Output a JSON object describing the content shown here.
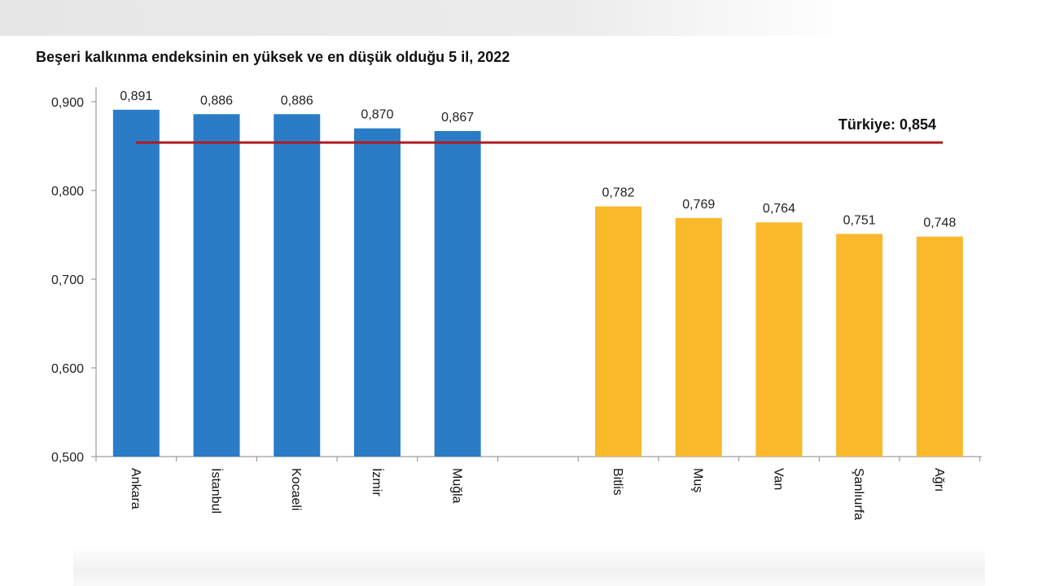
{
  "chart_data": {
    "type": "bar",
    "title": "Beşeri kalkınma endeksinin en yüksek ve en düşük olduğu 5 il, 2022",
    "xlabel": "",
    "ylabel": "",
    "ylim": [
      0.5,
      0.9
    ],
    "yticks": [
      "0,500",
      "0,600",
      "0,700",
      "0,800",
      "0,900"
    ],
    "ytick_values": [
      0.5,
      0.6,
      0.7,
      0.8,
      0.9
    ],
    "grid": false,
    "categories": [
      "Ankara",
      "İstanbul",
      "Kocaeli",
      "İzmir",
      "Muğla",
      "Bitlis",
      "Muş",
      "Van",
      "Şanlıurfa",
      "Ağrı"
    ],
    "values": [
      0.891,
      0.886,
      0.886,
      0.87,
      0.867,
      0.782,
      0.769,
      0.764,
      0.751,
      0.748
    ],
    "value_labels": [
      "0,891",
      "0,886",
      "0,886",
      "0,870",
      "0,867",
      "0,782",
      "0,769",
      "0,764",
      "0,751",
      "0,748"
    ],
    "groups": [
      {
        "indices": [
          0,
          1,
          2,
          3,
          4
        ],
        "color": "#2A7CC7"
      },
      {
        "indices": [
          5,
          6,
          7,
          8,
          9
        ],
        "color": "#F9B92B"
      }
    ],
    "reference_line": {
      "value": 0.854,
      "label": "Türkiye: 0,854",
      "color": "#B01B20"
    }
  }
}
